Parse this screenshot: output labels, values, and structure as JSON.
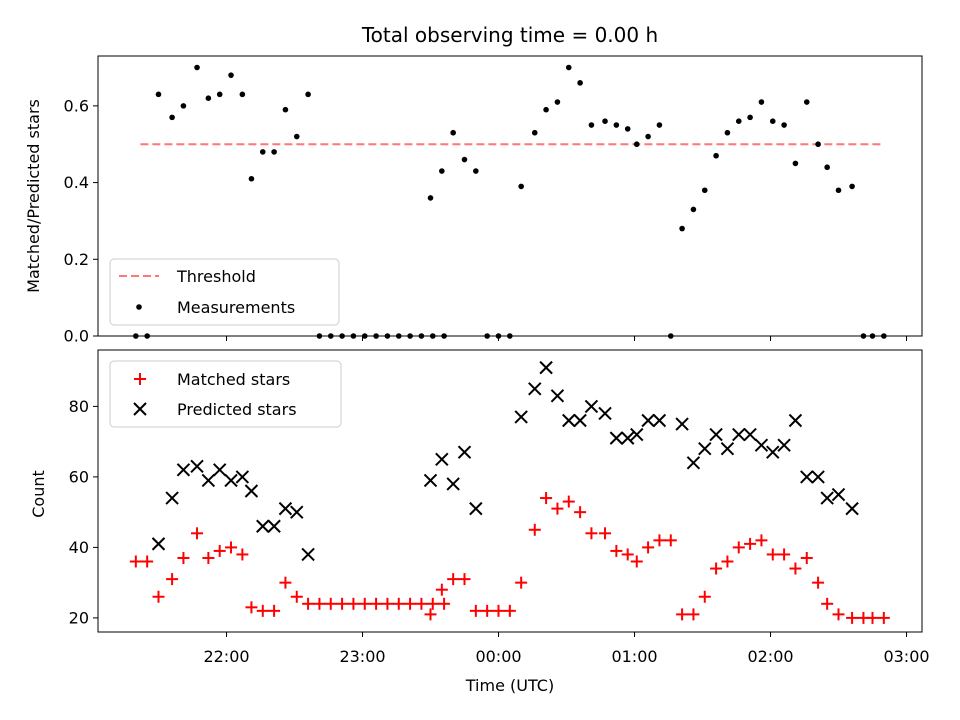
{
  "chart_data": [
    {
      "type": "scatter",
      "title": "Total observing time = 0.00 h",
      "ylabel": "Matched/Predicted stars",
      "ylim": [
        0,
        0.73
      ],
      "yticks": [
        "0.0",
        "0.2",
        "0.4",
        "0.6"
      ],
      "grid": false,
      "legend": "lower-left",
      "threshold": {
        "name": "Threshold",
        "y": 0.5,
        "x_range": [
          "21:22",
          "02:50"
        ],
        "color": "#ff7777"
      },
      "series": [
        {
          "name": "Measurements",
          "marker": "dot",
          "color": "#000000",
          "points": [
            [
              "21:20",
              0.0
            ],
            [
              "21:25",
              0.0
            ],
            [
              "21:30",
              0.63
            ],
            [
              "21:36",
              0.57
            ],
            [
              "21:41",
              0.6
            ],
            [
              "21:47",
              0.7
            ],
            [
              "21:52",
              0.62
            ],
            [
              "21:57",
              0.63
            ],
            [
              "22:02",
              0.68
            ],
            [
              "22:07",
              0.63
            ],
            [
              "22:11",
              0.41
            ],
            [
              "22:16",
              0.48
            ],
            [
              "22:21",
              0.48
            ],
            [
              "22:26",
              0.59
            ],
            [
              "22:31",
              0.52
            ],
            [
              "22:36",
              0.63
            ],
            [
              "22:41",
              0.0
            ],
            [
              "22:46",
              0.0
            ],
            [
              "22:51",
              0.0
            ],
            [
              "22:56",
              0.0
            ],
            [
              "23:01",
              0.0
            ],
            [
              "23:06",
              0.0
            ],
            [
              "23:11",
              0.0
            ],
            [
              "23:16",
              0.0
            ],
            [
              "23:21",
              0.0
            ],
            [
              "23:26",
              0.0
            ],
            [
              "23:31",
              0.0
            ],
            [
              "23:36",
              0.0
            ],
            [
              "23:30",
              0.36
            ],
            [
              "23:35",
              0.43
            ],
            [
              "23:40",
              0.53
            ],
            [
              "23:45",
              0.46
            ],
            [
              "23:50",
              0.43
            ],
            [
              "23:55",
              0.0
            ],
            [
              "00:00",
              0.0
            ],
            [
              "00:05",
              0.0
            ],
            [
              "00:10",
              0.39
            ],
            [
              "00:16",
              0.53
            ],
            [
              "00:21",
              0.59
            ],
            [
              "00:26",
              0.61
            ],
            [
              "00:31",
              0.7
            ],
            [
              "00:36",
              0.66
            ],
            [
              "00:41",
              0.55
            ],
            [
              "00:47",
              0.56
            ],
            [
              "00:52",
              0.55
            ],
            [
              "00:57",
              0.54
            ],
            [
              "01:01",
              0.5
            ],
            [
              "01:06",
              0.52
            ],
            [
              "01:11",
              0.55
            ],
            [
              "01:16",
              0.0
            ],
            [
              "01:21",
              0.28
            ],
            [
              "01:26",
              0.33
            ],
            [
              "01:31",
              0.38
            ],
            [
              "01:36",
              0.47
            ],
            [
              "01:41",
              0.53
            ],
            [
              "01:46",
              0.56
            ],
            [
              "01:51",
              0.57
            ],
            [
              "01:56",
              0.61
            ],
            [
              "02:01",
              0.56
            ],
            [
              "02:06",
              0.55
            ],
            [
              "02:11",
              0.45
            ],
            [
              "02:16",
              0.61
            ],
            [
              "02:21",
              0.5
            ],
            [
              "02:25",
              0.44
            ],
            [
              "02:30",
              0.38
            ],
            [
              "02:36",
              0.39
            ],
            [
              "02:41",
              0.0
            ],
            [
              "02:45",
              0.0
            ],
            [
              "02:50",
              0.0
            ]
          ]
        }
      ]
    },
    {
      "type": "scatter",
      "xlabel": "Time (UTC)",
      "ylabel": "Count",
      "ylim": [
        16,
        96
      ],
      "yticks": [
        "20",
        "40",
        "60",
        "80"
      ],
      "xticks": [
        "22:00",
        "23:00",
        "00:00",
        "01:00",
        "02:00",
        "03:00"
      ],
      "grid": false,
      "legend": "upper-left",
      "series": [
        {
          "name": "Matched stars",
          "marker": "plus",
          "color": "#ff0000",
          "points": [
            [
              "21:20",
              36
            ],
            [
              "21:25",
              36
            ],
            [
              "21:30",
              26
            ],
            [
              "21:36",
              31
            ],
            [
              "21:41",
              37
            ],
            [
              "21:47",
              44
            ],
            [
              "21:52",
              37
            ],
            [
              "21:57",
              39
            ],
            [
              "22:02",
              40
            ],
            [
              "22:07",
              38
            ],
            [
              "22:11",
              23
            ],
            [
              "22:16",
              22
            ],
            [
              "22:21",
              22
            ],
            [
              "22:26",
              30
            ],
            [
              "22:31",
              26
            ],
            [
              "22:36",
              24
            ],
            [
              "22:41",
              24
            ],
            [
              "22:46",
              24
            ],
            [
              "22:51",
              24
            ],
            [
              "22:56",
              24
            ],
            [
              "23:01",
              24
            ],
            [
              "23:06",
              24
            ],
            [
              "23:11",
              24
            ],
            [
              "23:16",
              24
            ],
            [
              "23:21",
              24
            ],
            [
              "23:26",
              24
            ],
            [
              "23:31",
              24
            ],
            [
              "23:36",
              24
            ],
            [
              "23:30",
              21
            ],
            [
              "23:35",
              28
            ],
            [
              "23:40",
              31
            ],
            [
              "23:45",
              31
            ],
            [
              "23:50",
              22
            ],
            [
              "23:55",
              22
            ],
            [
              "00:00",
              22
            ],
            [
              "00:05",
              22
            ],
            [
              "00:10",
              30
            ],
            [
              "00:16",
              45
            ],
            [
              "00:21",
              54
            ],
            [
              "00:26",
              51
            ],
            [
              "00:31",
              53
            ],
            [
              "00:36",
              50
            ],
            [
              "00:41",
              44
            ],
            [
              "00:47",
              44
            ],
            [
              "00:52",
              39
            ],
            [
              "00:57",
              38
            ],
            [
              "01:01",
              36
            ],
            [
              "01:06",
              40
            ],
            [
              "01:11",
              42
            ],
            [
              "01:16",
              42
            ],
            [
              "01:21",
              21
            ],
            [
              "01:26",
              21
            ],
            [
              "01:31",
              26
            ],
            [
              "01:36",
              34
            ],
            [
              "01:41",
              36
            ],
            [
              "01:46",
              40
            ],
            [
              "01:51",
              41
            ],
            [
              "01:56",
              42
            ],
            [
              "02:01",
              38
            ],
            [
              "02:06",
              38
            ],
            [
              "02:11",
              34
            ],
            [
              "02:16",
              37
            ],
            [
              "02:21",
              30
            ],
            [
              "02:25",
              24
            ],
            [
              "02:30",
              21
            ],
            [
              "02:36",
              20
            ],
            [
              "02:41",
              20
            ],
            [
              "02:45",
              20
            ],
            [
              "02:50",
              20
            ]
          ]
        },
        {
          "name": "Predicted stars",
          "marker": "x",
          "color": "#000000",
          "points": [
            [
              "21:30",
              41
            ],
            [
              "21:36",
              54
            ],
            [
              "21:41",
              62
            ],
            [
              "21:47",
              63
            ],
            [
              "21:52",
              59
            ],
            [
              "21:57",
              62
            ],
            [
              "22:02",
              59
            ],
            [
              "22:07",
              60
            ],
            [
              "22:11",
              56
            ],
            [
              "22:16",
              46
            ],
            [
              "22:21",
              46
            ],
            [
              "22:26",
              51
            ],
            [
              "22:31",
              50
            ],
            [
              "22:36",
              38
            ],
            [
              "23:30",
              59
            ],
            [
              "23:35",
              65
            ],
            [
              "23:40",
              58
            ],
            [
              "23:45",
              67
            ],
            [
              "23:50",
              51
            ],
            [
              "00:10",
              77
            ],
            [
              "00:16",
              85
            ],
            [
              "00:21",
              91
            ],
            [
              "00:26",
              83
            ],
            [
              "00:31",
              76
            ],
            [
              "00:36",
              76
            ],
            [
              "00:41",
              80
            ],
            [
              "00:47",
              78
            ],
            [
              "00:52",
              71
            ],
            [
              "00:57",
              71
            ],
            [
              "01:01",
              72
            ],
            [
              "01:06",
              76
            ],
            [
              "01:11",
              76
            ],
            [
              "01:21",
              75
            ],
            [
              "01:26",
              64
            ],
            [
              "01:31",
              68
            ],
            [
              "01:36",
              72
            ],
            [
              "01:41",
              68
            ],
            [
              "01:46",
              72
            ],
            [
              "01:51",
              72
            ],
            [
              "01:56",
              69
            ],
            [
              "02:01",
              67
            ],
            [
              "02:06",
              69
            ],
            [
              "02:11",
              76
            ],
            [
              "02:16",
              60
            ],
            [
              "02:21",
              60
            ],
            [
              "02:25",
              54
            ],
            [
              "02:30",
              55
            ],
            [
              "02:36",
              51
            ]
          ]
        }
      ]
    }
  ]
}
